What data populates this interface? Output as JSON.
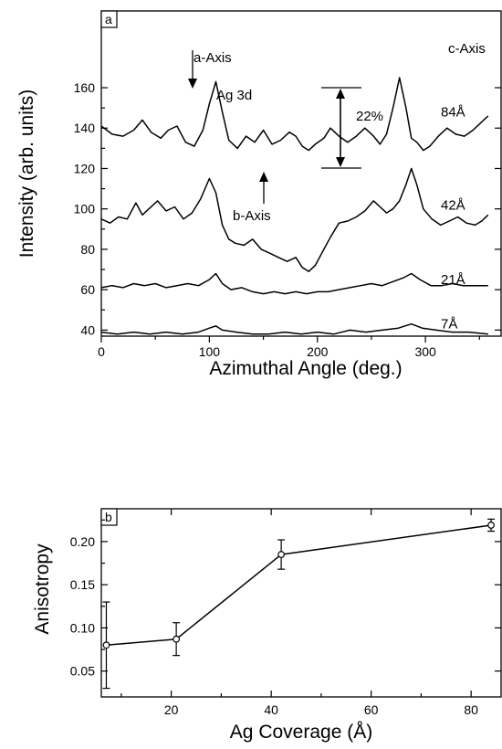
{
  "chart_data": [
    {
      "panel": "a",
      "type": "line",
      "xlabel": "Azimuthal Angle (deg.)",
      "ylabel": "Intensity (arb. units)",
      "xlim": [
        0,
        370
      ],
      "ylim": [
        37,
        198
      ],
      "xticks": [
        "0",
        "100",
        "200",
        "300"
      ],
      "yticks": [
        "40",
        "60",
        "80",
        "100",
        "120",
        "140",
        "160"
      ],
      "series": [
        {
          "name": "84Å",
          "x": [
            0,
            10,
            20,
            30,
            38,
            46,
            55,
            62,
            70,
            78,
            86,
            94,
            100,
            106,
            112,
            118,
            126,
            134,
            142,
            150,
            158,
            166,
            174,
            180,
            186,
            192,
            198,
            206,
            212,
            220,
            228,
            236,
            244,
            252,
            258,
            264,
            270,
            276,
            282,
            287,
            292,
            298,
            304,
            312,
            320,
            328,
            336,
            344,
            352,
            358
          ],
          "y": [
            141,
            137,
            136,
            139,
            144,
            138,
            135,
            139,
            141,
            133,
            131,
            139,
            152,
            163,
            148,
            134,
            130,
            136,
            133,
            139,
            132,
            134,
            138,
            136,
            131,
            129,
            132,
            135,
            140,
            136,
            133,
            136,
            140,
            136,
            132,
            137,
            150,
            165,
            150,
            135,
            133,
            129,
            131,
            136,
            140,
            137,
            136,
            139,
            143,
            146
          ]
        },
        {
          "name": "42Å",
          "x": [
            0,
            8,
            16,
            24,
            32,
            38,
            44,
            52,
            60,
            68,
            76,
            84,
            92,
            100,
            106,
            112,
            118,
            124,
            132,
            140,
            148,
            156,
            164,
            172,
            180,
            186,
            192,
            198,
            204,
            212,
            220,
            228,
            236,
            244,
            252,
            258,
            264,
            270,
            276,
            282,
            287,
            292,
            298,
            306,
            314,
            322,
            330,
            338,
            346,
            352,
            358
          ],
          "y": [
            95,
            93,
            96,
            95,
            103,
            97,
            100,
            104,
            99,
            101,
            95,
            98,
            105,
            115,
            108,
            92,
            85,
            83,
            82,
            85,
            80,
            78,
            76,
            74,
            76,
            71,
            69,
            72,
            78,
            86,
            93,
            94,
            96,
            99,
            104,
            101,
            98,
            100,
            104,
            112,
            120,
            112,
            100,
            95,
            92,
            94,
            96,
            93,
            92,
            94,
            97
          ]
        },
        {
          "name": "21Å",
          "x": [
            0,
            10,
            20,
            30,
            40,
            50,
            60,
            70,
            80,
            90,
            100,
            106,
            112,
            120,
            130,
            140,
            150,
            160,
            170,
            180,
            190,
            200,
            210,
            220,
            230,
            240,
            250,
            260,
            270,
            280,
            287,
            295,
            305,
            315,
            325,
            335,
            345,
            358
          ],
          "y": [
            61,
            62,
            61,
            63,
            62,
            63,
            61,
            62,
            63,
            62,
            65,
            68,
            63,
            60,
            61,
            59,
            58,
            59,
            58,
            59,
            58,
            59,
            59,
            60,
            61,
            62,
            63,
            62,
            64,
            66,
            68,
            65,
            62,
            62,
            63,
            62,
            62,
            62
          ]
        },
        {
          "name": "7Å",
          "x": [
            0,
            15,
            30,
            45,
            60,
            75,
            90,
            100,
            106,
            112,
            125,
            140,
            155,
            170,
            185,
            200,
            215,
            230,
            245,
            260,
            275,
            287,
            297,
            310,
            325,
            340,
            358
          ],
          "y": [
            39,
            38,
            39,
            38,
            39,
            38,
            39,
            41,
            42,
            40,
            39,
            38,
            38,
            39,
            38,
            39,
            38,
            40,
            39,
            40,
            41,
            43,
            41,
            40,
            39,
            39,
            38
          ]
        }
      ],
      "annotations": {
        "a_axis": "a-Axis",
        "b_axis": "b-Axis",
        "c_axis": "c-Axis",
        "ag3d": "Ag 3d",
        "percent": "22%"
      }
    },
    {
      "panel": "b",
      "type": "scatter",
      "xlabel": "Ag Coverage (Å)",
      "ylabel": "Anisotropy",
      "xlim": [
        6,
        86
      ],
      "ylim": [
        0.02,
        0.238
      ],
      "xticks": [
        "20",
        "40",
        "60",
        "80"
      ],
      "yticks": [
        "0.05",
        "0.10",
        "0.15",
        "0.20"
      ],
      "x": [
        7,
        21,
        42,
        84
      ],
      "y": [
        0.08,
        0.087,
        0.185,
        0.219
      ],
      "yerr": [
        0.05,
        0.019,
        0.017,
        0.007
      ]
    }
  ]
}
